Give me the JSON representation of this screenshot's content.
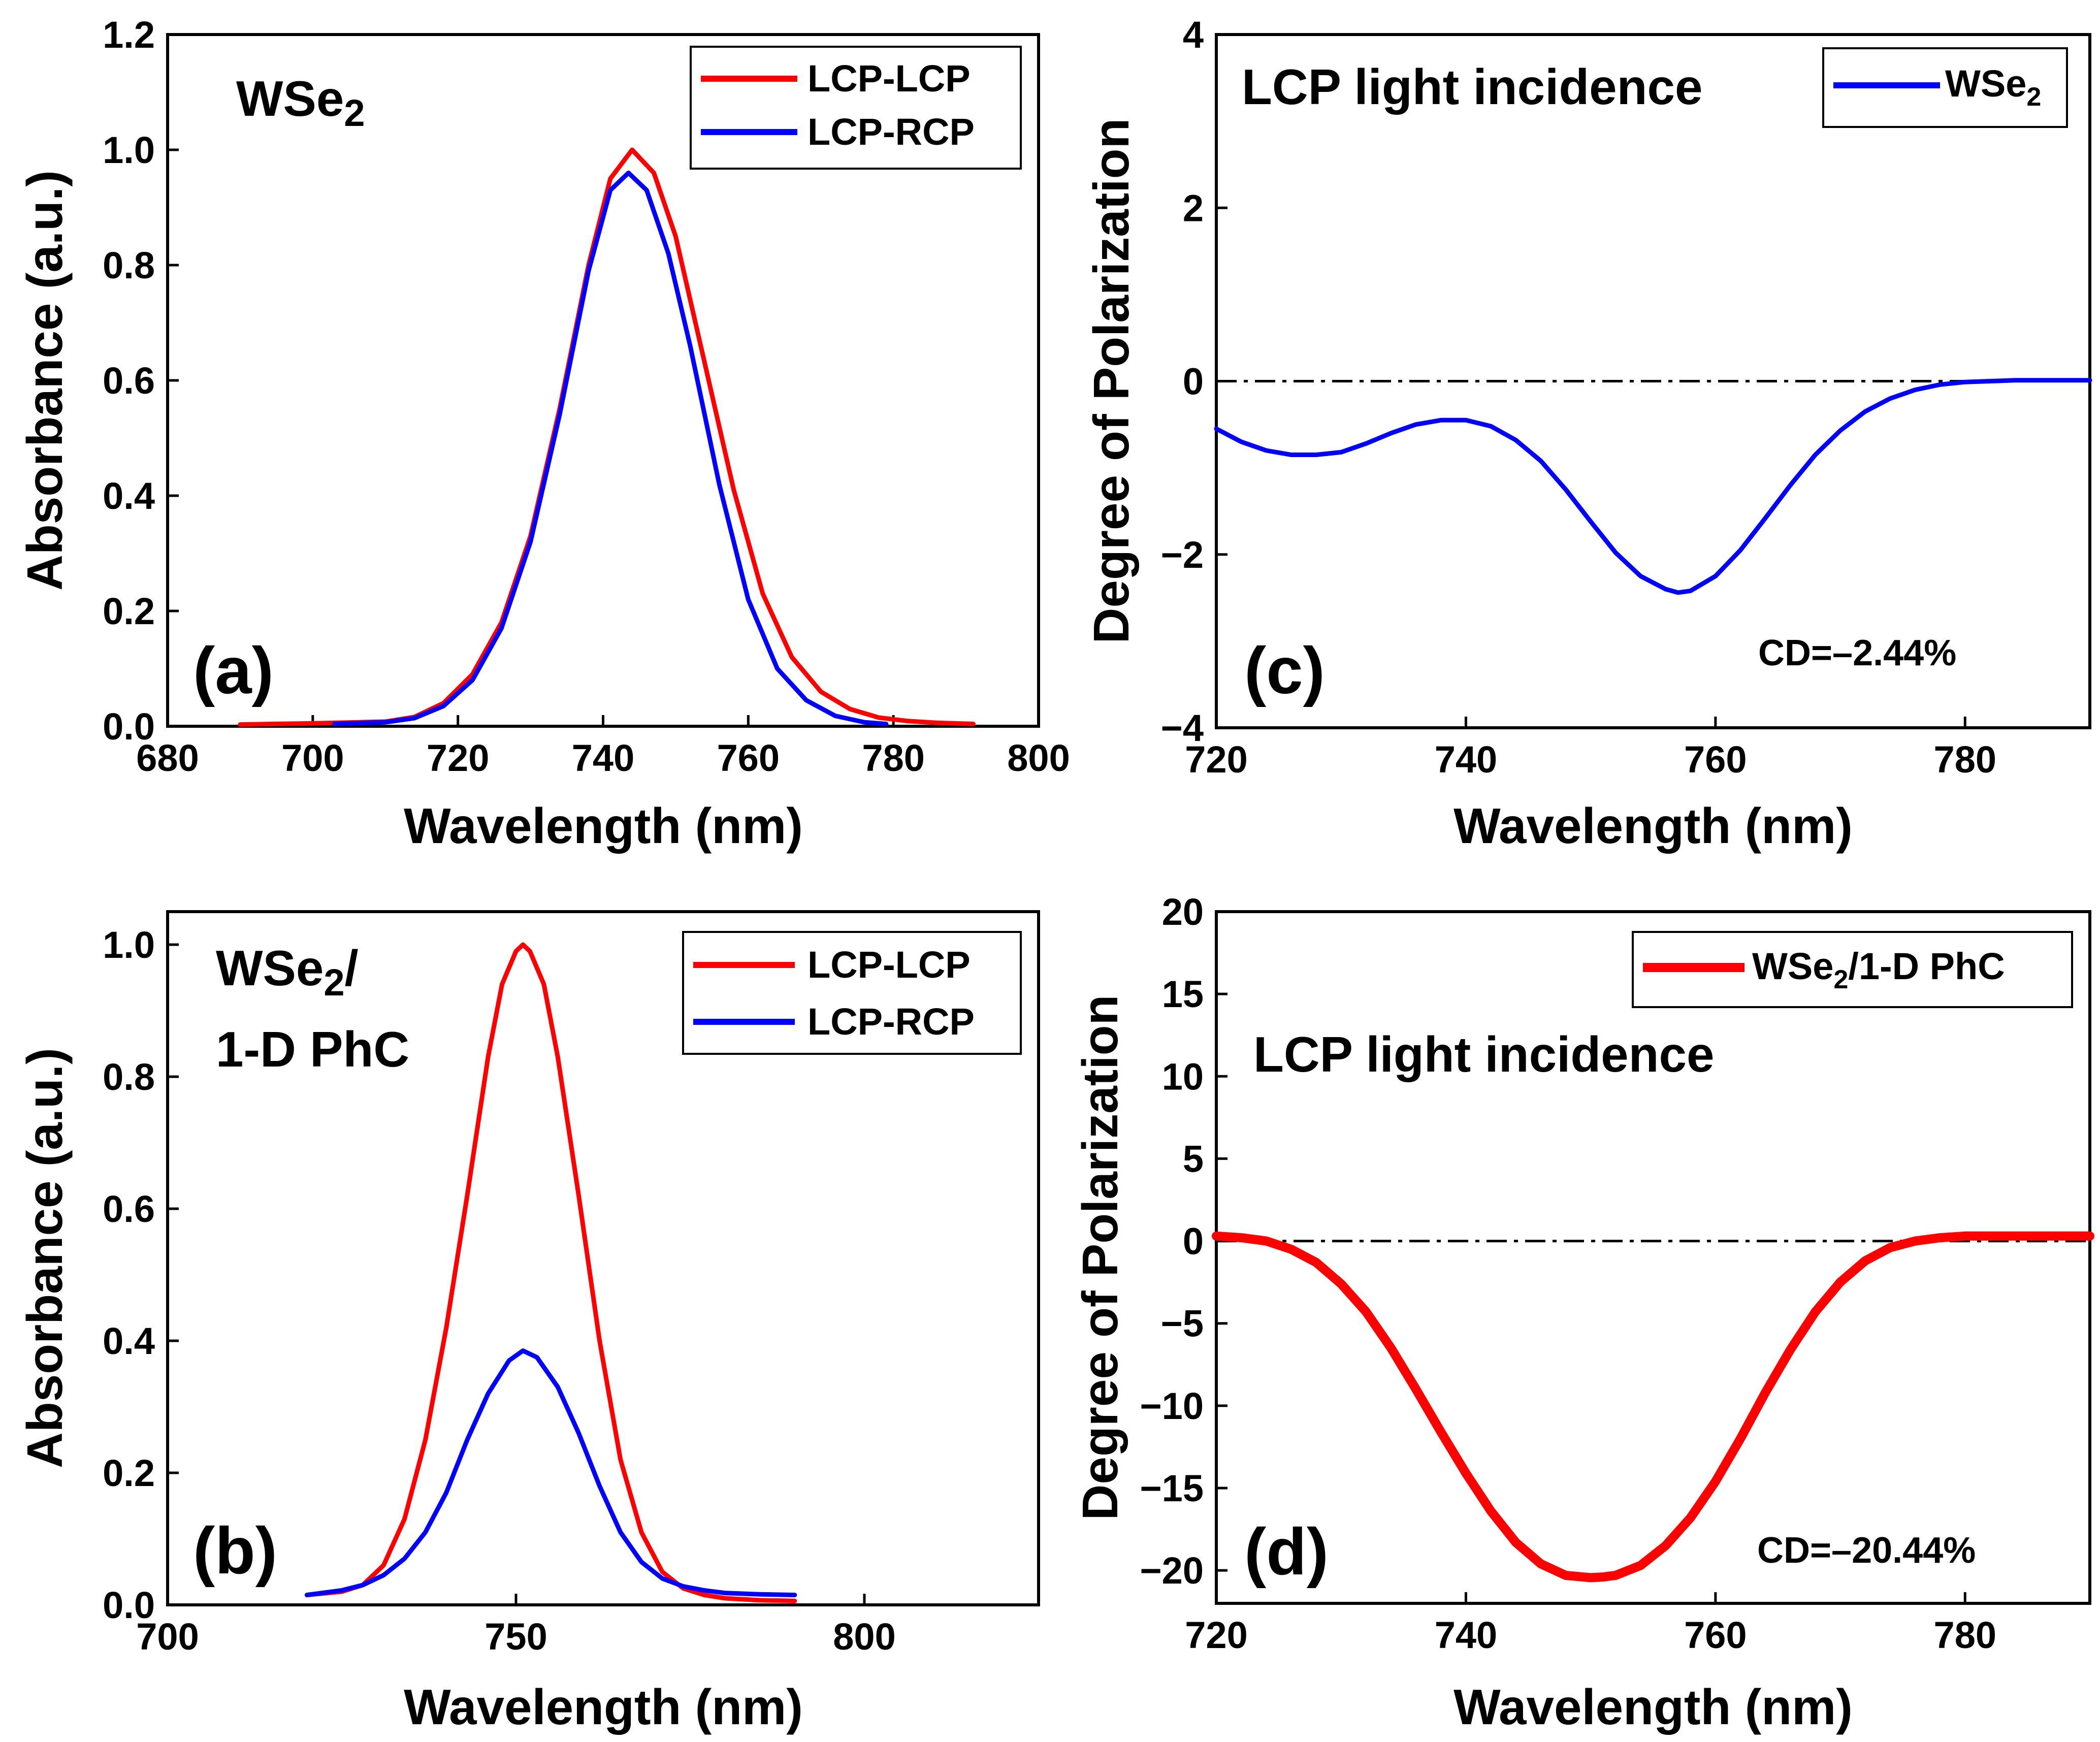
{
  "chart_data": [
    {
      "panel": "(a)",
      "type": "line",
      "title": "",
      "annotation": "WSe2",
      "xlabel": "Wavelength (nm)",
      "ylabel": "Absorbance (a.u.)",
      "xlim": [
        680,
        800
      ],
      "ylim": [
        0,
        1.2
      ],
      "xticks": [
        680,
        700,
        720,
        740,
        760,
        780,
        800
      ],
      "yticks": [
        0.0,
        0.2,
        0.4,
        0.6,
        0.8,
        1.0,
        1.2
      ],
      "xtick_labels": [
        "680",
        "700",
        "720",
        "740",
        "760",
        "780",
        "800"
      ],
      "ytick_labels": [
        "0.0",
        "0.2",
        "0.4",
        "0.6",
        "0.8",
        "1.0",
        "1.2"
      ],
      "legend": "top-right",
      "series": [
        {
          "name": "LCP-LCP",
          "color": "#ff0000",
          "x": [
            690,
            700,
            710,
            714,
            718,
            722,
            726,
            730,
            734,
            738,
            741,
            744,
            747,
            750,
            754,
            758,
            762,
            766,
            770,
            774,
            778,
            782,
            786,
            791
          ],
          "y": [
            0.003,
            0.005,
            0.008,
            0.016,
            0.04,
            0.09,
            0.18,
            0.33,
            0.55,
            0.8,
            0.95,
            1.0,
            0.96,
            0.85,
            0.63,
            0.41,
            0.23,
            0.12,
            0.06,
            0.03,
            0.015,
            0.009,
            0.006,
            0.004
          ]
        },
        {
          "name": "LCP-RCP",
          "color": "#0000ff",
          "x": [
            703,
            710,
            714,
            718,
            722,
            726,
            730,
            734,
            738,
            741,
            743.5,
            746,
            749,
            752,
            756,
            760,
            764,
            768,
            772,
            776,
            779
          ],
          "y": [
            0.004,
            0.007,
            0.014,
            0.035,
            0.08,
            0.17,
            0.32,
            0.54,
            0.79,
            0.93,
            0.96,
            0.93,
            0.82,
            0.66,
            0.42,
            0.22,
            0.1,
            0.045,
            0.018,
            0.007,
            0.004
          ]
        }
      ]
    },
    {
      "panel": "(b)",
      "type": "line",
      "annotation_lines": [
        "WSe2/",
        "1-D PhC"
      ],
      "xlabel": "Wavelength (nm)",
      "ylabel": "Absorbance (a.u.)",
      "xlim": [
        700,
        825
      ],
      "ylim": [
        0,
        1.05
      ],
      "xticks": [
        700,
        750,
        800
      ],
      "yticks": [
        0.0,
        0.2,
        0.4,
        0.6,
        0.8,
        1.0
      ],
      "xtick_labels": [
        "700",
        "750",
        "800"
      ],
      "ytick_labels": [
        "0.0",
        "0.2",
        "0.4",
        "0.6",
        "0.8",
        "1.0"
      ],
      "legend": "top-right",
      "series": [
        {
          "name": "LCP-LCP",
          "color": "#ff0000",
          "x": [
            720,
            725,
            728,
            731,
            734,
            737,
            740,
            743,
            746,
            748,
            750,
            751,
            752,
            754,
            756,
            759,
            762,
            765,
            768,
            771,
            774,
            777,
            780,
            785,
            790
          ],
          "y": [
            0.015,
            0.02,
            0.03,
            0.06,
            0.13,
            0.25,
            0.42,
            0.62,
            0.83,
            0.94,
            0.99,
            1.0,
            0.99,
            0.94,
            0.83,
            0.62,
            0.4,
            0.22,
            0.11,
            0.05,
            0.025,
            0.015,
            0.01,
            0.007,
            0.006
          ]
        },
        {
          "name": "LCP-RCP",
          "color": "#0000ff",
          "x": [
            720,
            725,
            728,
            731,
            734,
            737,
            740,
            743,
            746,
            749,
            751,
            753,
            756,
            759,
            762,
            765,
            768,
            771,
            774,
            777,
            780,
            785,
            790
          ],
          "y": [
            0.015,
            0.022,
            0.03,
            0.045,
            0.07,
            0.11,
            0.17,
            0.25,
            0.32,
            0.37,
            0.385,
            0.375,
            0.33,
            0.26,
            0.18,
            0.11,
            0.065,
            0.04,
            0.028,
            0.022,
            0.018,
            0.016,
            0.015
          ]
        }
      ]
    },
    {
      "panel": "(c)",
      "type": "line",
      "annotation": "LCP light incidence",
      "cd_label": "CD=–2.44%",
      "xlabel": "Wavelength (nm)",
      "ylabel": "Degree of Polarization",
      "xlim": [
        720,
        790
      ],
      "ylim": [
        -4,
        4
      ],
      "xticks": [
        720,
        740,
        760,
        780
      ],
      "yticks": [
        -4,
        -2,
        0,
        2,
        4
      ],
      "xtick_labels": [
        "720",
        "740",
        "760",
        "780"
      ],
      "ytick_labels": [
        "−4",
        "−2",
        "0",
        "2",
        "4"
      ],
      "reference_line": 0,
      "legend": "top-right",
      "series": [
        {
          "name": "WSe2",
          "color": "#0000ff",
          "x": [
            720,
            722,
            724,
            726,
            728,
            730,
            732,
            734,
            736,
            738,
            740,
            742,
            744,
            746,
            748,
            750,
            752,
            754,
            756,
            757,
            758,
            760,
            762,
            764,
            766,
            768,
            770,
            772,
            774,
            776,
            778,
            780,
            782,
            784,
            786,
            788,
            790
          ],
          "y": [
            -0.55,
            -0.7,
            -0.8,
            -0.85,
            -0.85,
            -0.82,
            -0.72,
            -0.6,
            -0.5,
            -0.45,
            -0.45,
            -0.52,
            -0.68,
            -0.92,
            -1.25,
            -1.62,
            -1.98,
            -2.25,
            -2.4,
            -2.44,
            -2.42,
            -2.25,
            -1.95,
            -1.58,
            -1.2,
            -0.85,
            -0.57,
            -0.35,
            -0.2,
            -0.1,
            -0.04,
            -0.01,
            0.0,
            0.01,
            0.01,
            0.01,
            0.01
          ]
        }
      ]
    },
    {
      "panel": "(d)",
      "type": "line",
      "annotation": "LCP light incidence",
      "cd_label": "CD=–20.44%",
      "xlabel": "Wavelength (nm)",
      "ylabel": "Degree of Polarization",
      "xlim": [
        720,
        790
      ],
      "ylim": [
        -22,
        20
      ],
      "xticks": [
        720,
        740,
        760,
        780
      ],
      "yticks": [
        -20,
        -15,
        -10,
        -5,
        0,
        5,
        10,
        15,
        20
      ],
      "xtick_labels": [
        "720",
        "740",
        "760",
        "780"
      ],
      "ytick_labels": [
        "−20",
        "−15",
        "−10",
        "−5",
        "0",
        "5",
        "10",
        "15",
        "20"
      ],
      "reference_line": 0,
      "legend": "top-right",
      "series": [
        {
          "name": "WSe2/1-D PhC",
          "color": "#ff0000",
          "x": [
            720,
            722,
            724,
            726,
            728,
            730,
            732,
            734,
            736,
            738,
            740,
            742,
            744,
            746,
            748,
            750,
            751,
            752,
            754,
            756,
            758,
            760,
            762,
            764,
            766,
            768,
            770,
            772,
            774,
            776,
            778,
            780,
            782,
            786,
            790
          ],
          "y": [
            0.3,
            0.2,
            0.0,
            -0.5,
            -1.3,
            -2.6,
            -4.3,
            -6.5,
            -9.0,
            -11.6,
            -14.1,
            -16.4,
            -18.3,
            -19.6,
            -20.3,
            -20.44,
            -20.4,
            -20.3,
            -19.7,
            -18.5,
            -16.8,
            -14.6,
            -12.0,
            -9.2,
            -6.6,
            -4.3,
            -2.5,
            -1.2,
            -0.4,
            0.0,
            0.2,
            0.3,
            0.3,
            0.3,
            0.3
          ]
        }
      ]
    }
  ]
}
